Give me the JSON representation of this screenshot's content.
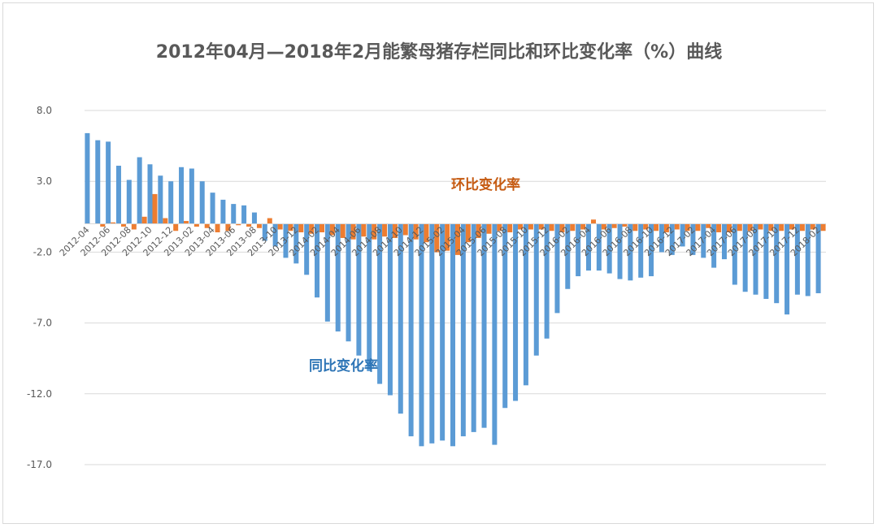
{
  "chart_data": {
    "type": "bar",
    "title": "2012年04月—2018年2月能繁母猪存栏同比和环比变化率（%）曲线",
    "ylim": [
      -17,
      8
    ],
    "yticks": [
      8.0,
      3.0,
      -2.0,
      -7.0,
      -12.0,
      -17.0
    ],
    "ytick_labels": [
      "8.0",
      "3.0",
      "-2.0",
      "-7.0",
      "-12.0",
      "-17.0"
    ],
    "grid": true,
    "legend": "none",
    "annotations": [
      {
        "text": "环比变化率",
        "series": "环比变化率",
        "color": "#c55a11"
      },
      {
        "text": "同比变化率",
        "series": "同比变化率",
        "color": "#2e75b6"
      }
    ],
    "tick_labels": [
      "2012-04",
      "2012-06",
      "2012-08",
      "2012-10",
      "2012-12",
      "2013-02",
      "2013-04",
      "2013-06",
      "2013-08",
      "2013-10",
      "2013-12",
      "2014-02",
      "2014-04",
      "2014-06",
      "2014-08",
      "2014-10",
      "2014-12",
      "2015-02",
      "2015-04",
      "2015-06",
      "2015-08",
      "2015-10",
      "2015-12",
      "2016-02",
      "2016-04",
      "2016-06",
      "2016-08",
      "2016-10",
      "2016-12",
      "2017-02",
      "2017-04",
      "2017-06",
      "2017-08",
      "2017-10",
      "2017-12",
      "2018-02"
    ],
    "categories": [
      "2012-04",
      "2012-05",
      "2012-06",
      "2012-07",
      "2012-08",
      "2012-09",
      "2012-10",
      "2012-11",
      "2012-12",
      "2013-01",
      "2013-02",
      "2013-03",
      "2013-04",
      "2013-05",
      "2013-06",
      "2013-07",
      "2013-08",
      "2013-09",
      "2013-10",
      "2013-11",
      "2013-12",
      "2014-01",
      "2014-02",
      "2014-03",
      "2014-04",
      "2014-05",
      "2014-06",
      "2014-07",
      "2014-08",
      "2014-09",
      "2014-10",
      "2014-11",
      "2014-12",
      "2015-01",
      "2015-02",
      "2015-03",
      "2015-04",
      "2015-05",
      "2015-06",
      "2015-07",
      "2015-08",
      "2015-09",
      "2015-10",
      "2015-11",
      "2015-12",
      "2016-01",
      "2016-02",
      "2016-03",
      "2016-04",
      "2016-05",
      "2016-06",
      "2016-07",
      "2016-08",
      "2016-09",
      "2016-10",
      "2016-11",
      "2016-12",
      "2017-01",
      "2017-02",
      "2017-03",
      "2017-04",
      "2017-05",
      "2017-06",
      "2017-07",
      "2017-08",
      "2017-09",
      "2017-10",
      "2017-11",
      "2017-12",
      "2018-01",
      "2018-02"
    ],
    "series": [
      {
        "name": "同比变化率",
        "color": "#5b9bd5",
        "values": [
          6.4,
          5.9,
          5.8,
          4.1,
          3.1,
          4.7,
          4.2,
          3.4,
          3.0,
          4.0,
          3.9,
          3.0,
          2.2,
          1.7,
          1.4,
          1.3,
          0.8,
          -1.2,
          -1.6,
          -2.4,
          -2.8,
          -3.6,
          -5.2,
          -6.9,
          -7.6,
          -8.3,
          -9.3,
          -10.4,
          -11.3,
          -12.1,
          -13.4,
          -15.0,
          -15.7,
          -15.5,
          -15.3,
          -15.7,
          -15.0,
          -14.7,
          -14.4,
          -15.6,
          -13.0,
          -12.5,
          -11.4,
          -9.3,
          -8.1,
          -6.3,
          -4.6,
          -3.7,
          -3.3,
          -3.3,
          -3.5,
          -3.9,
          -4.0,
          -3.8,
          -3.7,
          -2.0,
          -2.2,
          -1.6,
          -2.2,
          -2.4,
          -3.1,
          -2.5,
          -4.3,
          -4.8,
          -5.0,
          -5.3,
          -5.6,
          -6.4,
          -5.0,
          -5.1,
          -4.9
        ]
      },
      {
        "name": "环比变化率",
        "color": "#ed7d31",
        "values": [
          0.0,
          -0.2,
          0.1,
          -0.2,
          -0.4,
          0.5,
          2.1,
          0.4,
          -0.5,
          0.2,
          -0.2,
          -0.3,
          -0.6,
          -0.5,
          -0.1,
          -0.2,
          -0.3,
          0.4,
          -0.4,
          -0.5,
          -0.6,
          -0.7,
          -0.6,
          -0.8,
          -1.0,
          -1.1,
          -0.9,
          -1.1,
          -0.9,
          -1.0,
          -0.8,
          -1.1,
          -1.3,
          -2.0,
          -1.9,
          -2.2,
          -1.3,
          -1.0,
          -0.7,
          -0.5,
          -0.6,
          -0.4,
          -0.4,
          -0.4,
          -0.5,
          -0.6,
          -0.5,
          -0.4,
          0.3,
          -0.4,
          -0.3,
          -0.2,
          -0.5,
          -0.4,
          -0.5,
          -0.6,
          -0.4,
          -0.5,
          -0.5,
          -0.3,
          -0.6,
          -0.6,
          -0.5,
          -0.5,
          -0.4,
          -0.5,
          -0.5,
          -0.4,
          -0.5,
          -0.4,
          -0.5
        ]
      }
    ]
  }
}
